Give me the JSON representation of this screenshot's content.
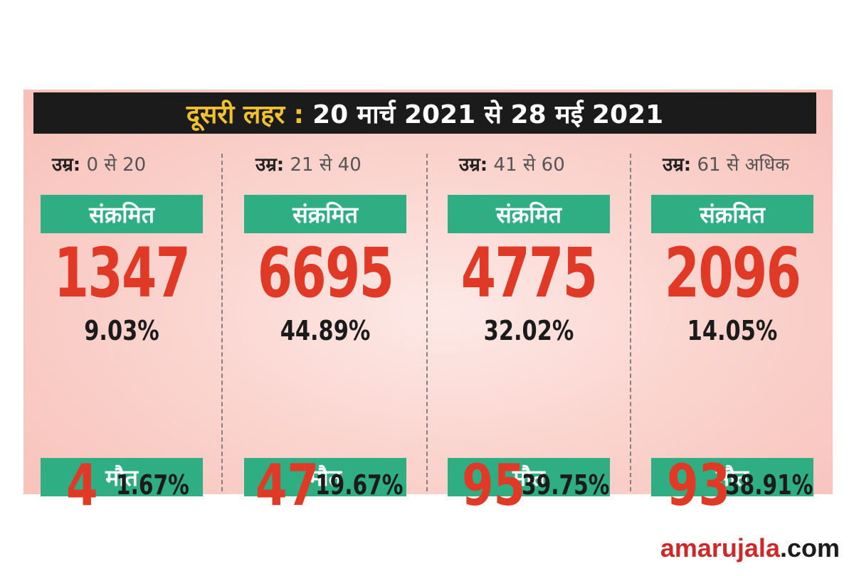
{
  "header": {
    "highlight": "दूसरी लहर :",
    "dates": "20 मार्च 2021 से 28 मई 2021"
  },
  "columns": [
    {
      "age_label": "उम्र:",
      "age_value": "0 से 20",
      "infected_label": "संक्रमित",
      "infected": "1347",
      "infected_pct": "9.03%",
      "deaths_label": "मौत",
      "deaths": "4",
      "deaths_pct": "1.67%"
    },
    {
      "age_label": "उम्र:",
      "age_value": "21 से 40",
      "infected_label": "संक्रमित",
      "infected": "6695",
      "infected_pct": "44.89%",
      "deaths_label": "मौत",
      "deaths": "47",
      "deaths_pct": "19.67%"
    },
    {
      "age_label": "उम्र:",
      "age_value": "41 से 60",
      "infected_label": "संक्रमित",
      "infected": "4775",
      "infected_pct": "32.02%",
      "deaths_label": "मौत",
      "deaths": "95",
      "deaths_pct": "39.75%"
    },
    {
      "age_label": "उम्र:",
      "age_value": "61 से अधिक",
      "infected_label": "संक्रमित",
      "infected": "2096",
      "infected_pct": "14.05%",
      "deaths_label": "मौत",
      "deaths": "93",
      "deaths_pct": "38.91%"
    }
  ],
  "brand": {
    "part1": "amarujala",
    "part2": ".com"
  },
  "colors": {
    "accent_red": "#e03a26",
    "badge_green": "#2fae83",
    "header_bg": "#1b1b1b",
    "header_highlight": "#f2c12e"
  }
}
